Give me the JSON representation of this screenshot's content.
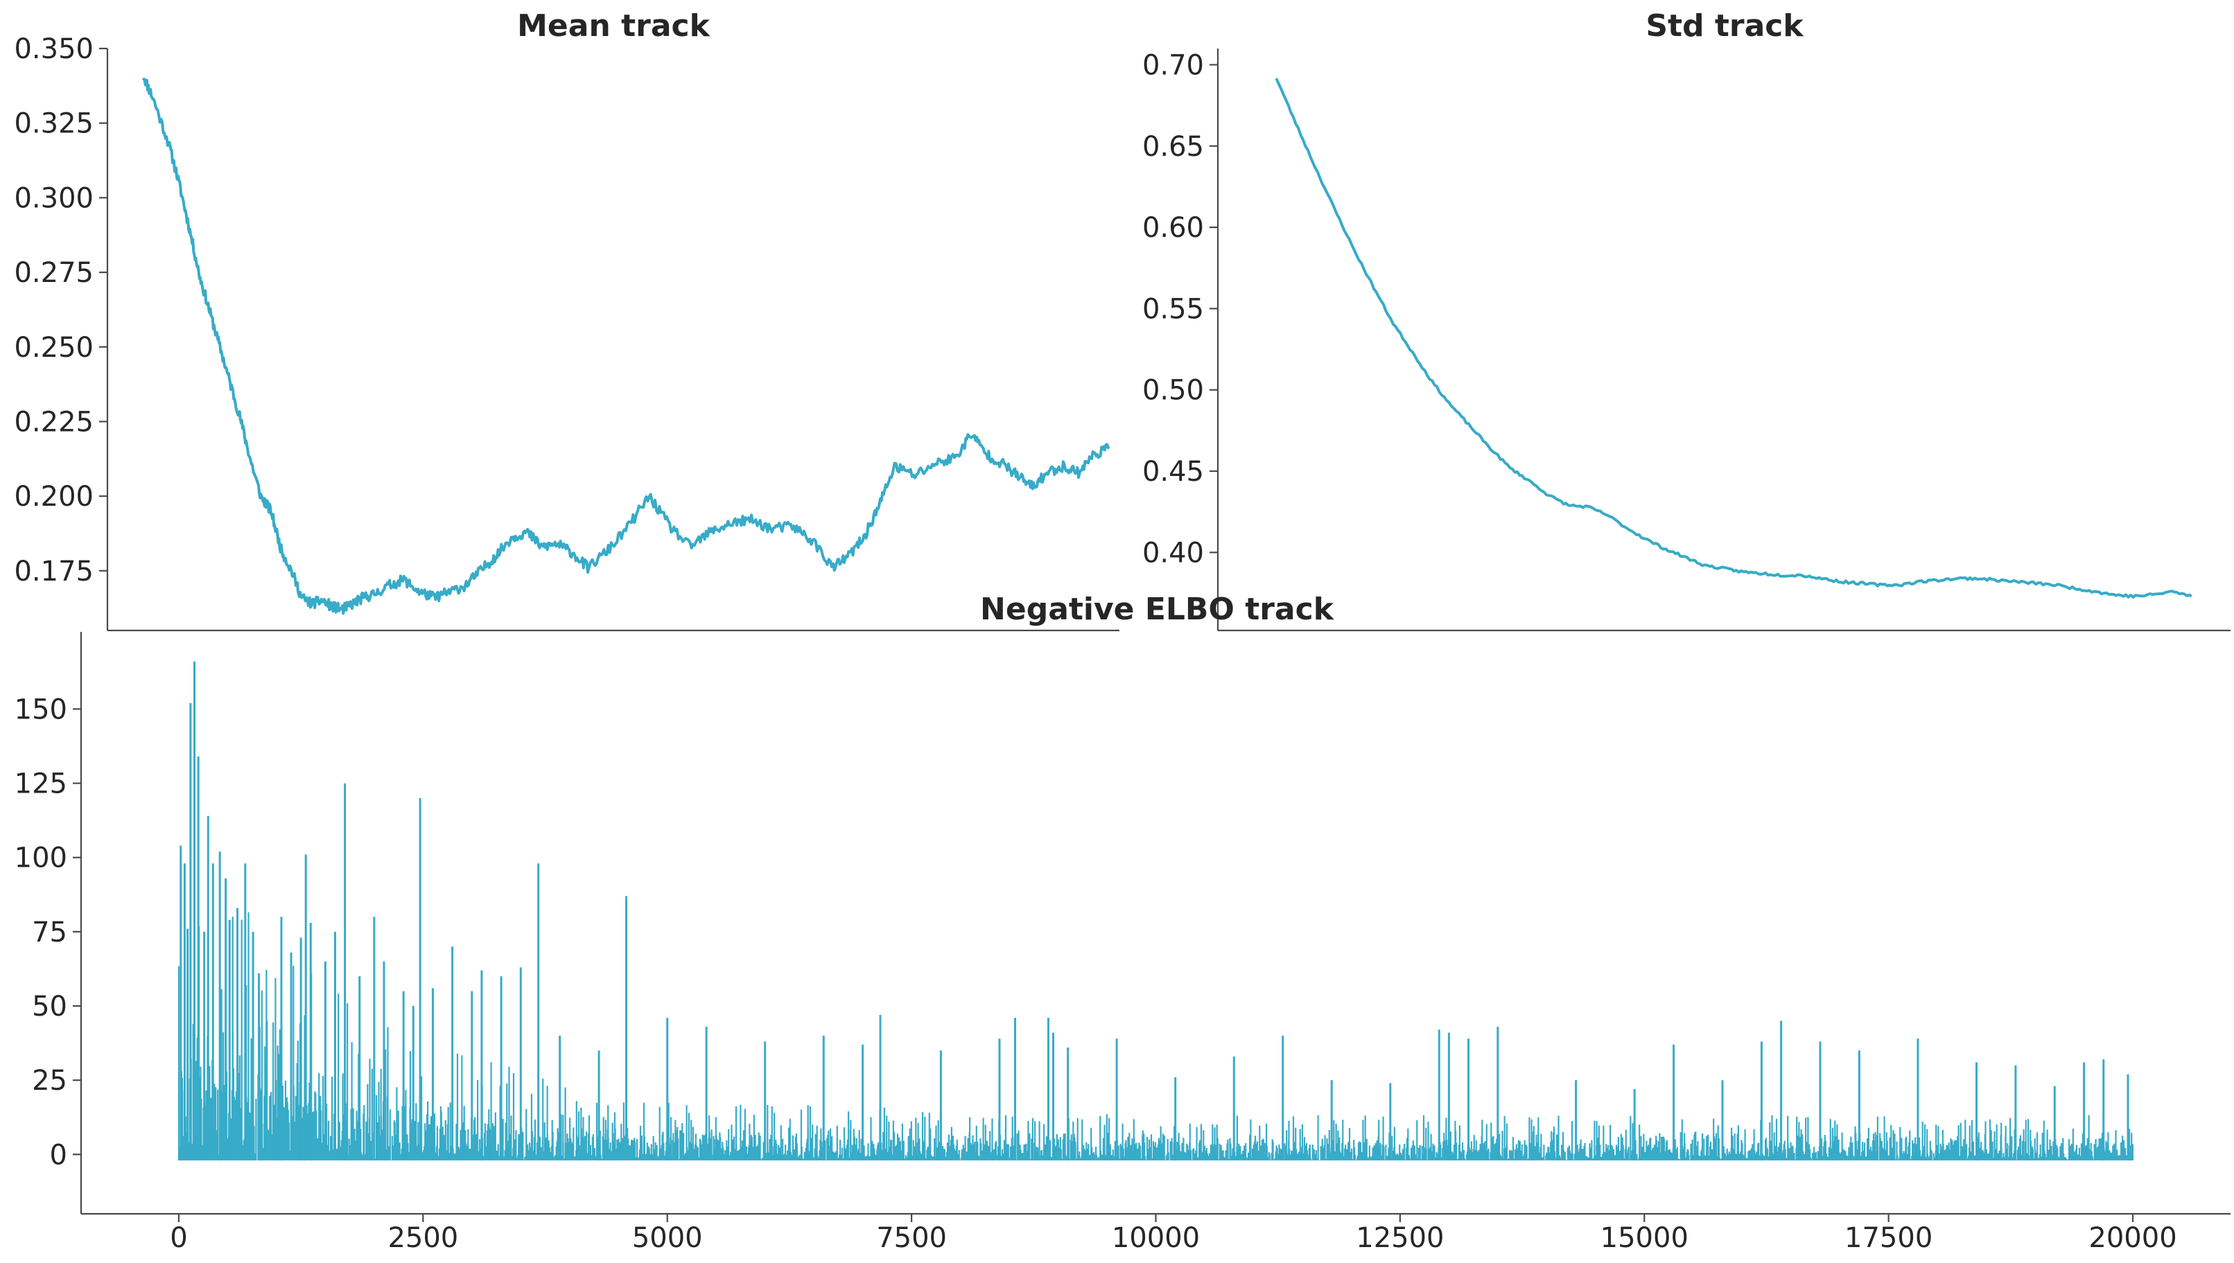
{
  "style": {
    "line_color": "#37abc8",
    "axis_color": "#4a4a4a",
    "text_color": "#262626"
  },
  "chart_data": [
    {
      "id": "mean",
      "type": "line",
      "title": "Mean track",
      "xlabel": "",
      "ylabel": "",
      "xlim": [
        -600,
        9300
      ],
      "ylim": [
        0.155,
        0.35
      ],
      "xticks": [],
      "yticks": [
        0.175,
        0.2,
        0.225,
        0.25,
        0.275,
        0.3,
        0.325,
        0.35
      ],
      "ytick_labels": [
        "0.175",
        "0.200",
        "0.225",
        "0.250",
        "0.275",
        "0.300",
        "0.325",
        "0.350"
      ],
      "grid": false,
      "series": [
        {
          "x": [
            -250,
            -150,
            0,
            100,
            200,
            300,
            400,
            500,
            600,
            700,
            800,
            900,
            1000,
            1100,
            1200,
            1300,
            1400,
            1500,
            1600,
            1700,
            1800,
            1900,
            2000,
            2150,
            2300,
            2450,
            2600,
            2750,
            2900,
            3050,
            3200,
            3350,
            3500,
            3650,
            3800,
            3950,
            4100,
            4300,
            4500,
            4700,
            4900,
            5100,
            5300,
            5500,
            5700,
            5900,
            6100,
            6300,
            6500,
            6650,
            6800,
            6950,
            7100,
            7300,
            7500,
            7700,
            7850,
            8000,
            8150,
            8300,
            8450,
            8600,
            8750,
            8900,
            9050,
            9200
          ],
          "y": [
            0.341,
            0.333,
            0.318,
            0.305,
            0.29,
            0.274,
            0.262,
            0.25,
            0.238,
            0.226,
            0.212,
            0.2,
            0.195,
            0.182,
            0.175,
            0.166,
            0.164,
            0.165,
            0.163,
            0.162,
            0.164,
            0.166,
            0.167,
            0.17,
            0.172,
            0.168,
            0.166,
            0.168,
            0.17,
            0.175,
            0.18,
            0.186,
            0.188,
            0.183,
            0.184,
            0.181,
            0.176,
            0.182,
            0.19,
            0.2,
            0.19,
            0.183,
            0.188,
            0.191,
            0.192,
            0.189,
            0.19,
            0.185,
            0.176,
            0.18,
            0.186,
            0.197,
            0.21,
            0.207,
            0.211,
            0.213,
            0.221,
            0.214,
            0.211,
            0.207,
            0.203,
            0.208,
            0.21,
            0.208,
            0.214,
            0.216
          ]
        }
      ]
    },
    {
      "id": "std",
      "type": "line",
      "title": "Std track",
      "xlabel": "",
      "ylabel": "",
      "xlim": [
        10500,
        20900
      ],
      "ylim": [
        0.352,
        0.71
      ],
      "xticks": [],
      "yticks": [
        0.4,
        0.45,
        0.5,
        0.55,
        0.6,
        0.65,
        0.7
      ],
      "ytick_labels": [
        "0.40",
        "0.45",
        "0.50",
        "0.55",
        "0.60",
        "0.65",
        "0.70"
      ],
      "grid": false,
      "series": [
        {
          "x": [
            11100,
            11300,
            11500,
            11700,
            11900,
            12100,
            12300,
            12500,
            12700,
            12900,
            13100,
            13300,
            13500,
            13700,
            13900,
            14100,
            14300,
            14500,
            14700,
            14900,
            15100,
            15300,
            15500,
            15700,
            15900,
            16100,
            16300,
            16500,
            16700,
            16900,
            17100,
            17300,
            17500,
            17700,
            17900,
            18100,
            18300,
            18500,
            18700,
            18900,
            19100,
            19300,
            19500,
            19700,
            19900,
            20100,
            20300,
            20500
          ],
          "y": [
            0.692,
            0.664,
            0.637,
            0.611,
            0.586,
            0.563,
            0.541,
            0.523,
            0.505,
            0.49,
            0.477,
            0.464,
            0.452,
            0.444,
            0.435,
            0.429,
            0.428,
            0.423,
            0.415,
            0.408,
            0.402,
            0.397,
            0.392,
            0.39,
            0.388,
            0.387,
            0.386,
            0.386,
            0.384,
            0.382,
            0.381,
            0.38,
            0.38,
            0.382,
            0.383,
            0.384,
            0.384,
            0.383,
            0.382,
            0.381,
            0.38,
            0.378,
            0.376,
            0.374,
            0.373,
            0.374,
            0.376,
            0.373
          ]
        }
      ]
    },
    {
      "id": "elbo",
      "type": "line",
      "title": "Negative ELBO track",
      "xlabel": "",
      "ylabel": "",
      "xlim": [
        -1000,
        21000
      ],
      "ylim": [
        -20,
        176
      ],
      "xticks": [
        0,
        2500,
        5000,
        7500,
        10000,
        12500,
        15000,
        17500,
        20000
      ],
      "xtick_labels": [
        "0",
        "2500",
        "5000",
        "7500",
        "10000",
        "12500",
        "15000",
        "17500",
        "20000"
      ],
      "yticks": [
        0,
        25,
        50,
        75,
        100,
        125,
        150
      ],
      "ytick_labels": [
        "0",
        "25",
        "50",
        "75",
        "100",
        "125",
        "150"
      ],
      "grid": false,
      "baseline_min": -2,
      "band": {
        "x": [
          0,
          500,
          1000,
          1500,
          2000,
          2500,
          3000,
          3500,
          4000,
          5000,
          6000,
          8000,
          10000,
          12000,
          15000,
          18000,
          20000
        ],
        "upper": [
          55,
          40,
          30,
          26,
          22,
          18,
          15,
          13,
          11,
          10,
          9,
          8,
          7,
          7,
          7,
          7,
          7
        ]
      },
      "spikes": {
        "x": [
          20,
          60,
          90,
          120,
          160,
          200,
          260,
          300,
          350,
          420,
          480,
          520,
          600,
          680,
          760,
          820,
          900,
          1050,
          1150,
          1250,
          1300,
          1350,
          1500,
          1600,
          1700,
          1850,
          2000,
          2100,
          2300,
          2400,
          2470,
          2600,
          2800,
          3000,
          3100,
          3300,
          3500,
          3680,
          3900,
          4300,
          4580,
          5000,
          5400,
          6000,
          6600,
          7000,
          7180,
          7800,
          8400,
          8560,
          8900,
          8950,
          9100,
          9600,
          10200,
          10800,
          11300,
          11800,
          12400,
          12900,
          13000,
          13200,
          13500,
          14300,
          14900,
          15300,
          15800,
          16200,
          16400,
          16800,
          17200,
          17800,
          18400,
          18800,
          19200,
          19500,
          19700,
          19950
        ],
        "y": [
          104,
          98,
          76,
          152,
          166,
          134,
          75,
          114,
          98,
          102,
          93,
          79,
          83,
          98,
          75,
          61,
          45,
          80,
          68,
          73,
          101,
          78,
          65,
          75,
          125,
          60,
          80,
          65,
          55,
          50,
          120,
          56,
          70,
          55,
          62,
          60,
          63,
          98,
          40,
          35,
          87,
          46,
          43,
          38,
          40,
          37,
          47,
          35,
          39,
          46,
          46,
          41,
          36,
          39,
          26,
          33,
          40,
          25,
          24,
          42,
          41,
          39,
          43,
          25,
          22,
          37,
          25,
          38,
          45,
          38,
          35,
          39,
          31,
          30,
          23,
          31,
          32,
          27
        ]
      },
      "series": [
        {
          "name": "",
          "x": [
            0,
            20000
          ]
        }
      ]
    }
  ]
}
